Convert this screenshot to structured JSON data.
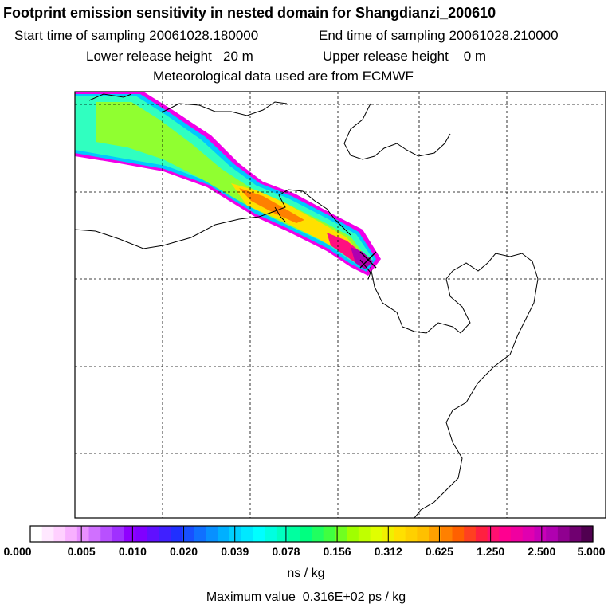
{
  "title": "Footprint emission sensitivity in nested domain for Shangdianzi_200610",
  "start_label": "Start time of sampling 20061028.180000",
  "end_label": "End time of sampling 20061028.210000",
  "lower_label": "Lower release height   20 m",
  "upper_label": "Upper release height    0 m",
  "met_label": "Meteorological data used are from ECMWF",
  "colorbar": {
    "ticks": [
      "0.000",
      "0.005",
      "0.010",
      "0.020",
      "0.039",
      "0.078",
      "0.156",
      "0.312",
      "0.625",
      "1.250",
      "2.500",
      "5.000"
    ],
    "colors": [
      "#ffffff",
      "#ffe8ff",
      "#ffd0ff",
      "#f8b0ff",
      "#e890ff",
      "#d070ff",
      "#b850ff",
      "#a030ff",
      "#9000ff",
      "#8000ff",
      "#6010ff",
      "#4020ff",
      "#2030ff",
      "#1850ff",
      "#1070ff",
      "#0890ff",
      "#00b0ff",
      "#00d0ff",
      "#00e8ff",
      "#00ffff",
      "#00ffe0",
      "#00ffc0",
      "#00ffa0",
      "#00ff80",
      "#20ff60",
      "#40ff40",
      "#70ff20",
      "#a0ff00",
      "#c0ff00",
      "#e0ff00",
      "#f0f000",
      "#ffe000",
      "#ffd000",
      "#ffc000",
      "#ffa000",
      "#ff8000",
      "#ff6000",
      "#ff4020",
      "#ff2040",
      "#ff1070",
      "#ff0090",
      "#f000a0",
      "#e000b0",
      "#c800b8",
      "#b000b0",
      "#900090",
      "#700070",
      "#500050"
    ]
  },
  "unit_label": "ns / kg",
  "max_prefix": "Maximum value",
  "max_value": "0.316E+02",
  "max_unit": "ps / kg",
  "plume": {
    "source": "Shangdianzi",
    "levels": [
      "#30ffc0",
      "#90ff30",
      "#ffe000",
      "#ff8000",
      "#ff1080",
      "#b000b0"
    ]
  }
}
